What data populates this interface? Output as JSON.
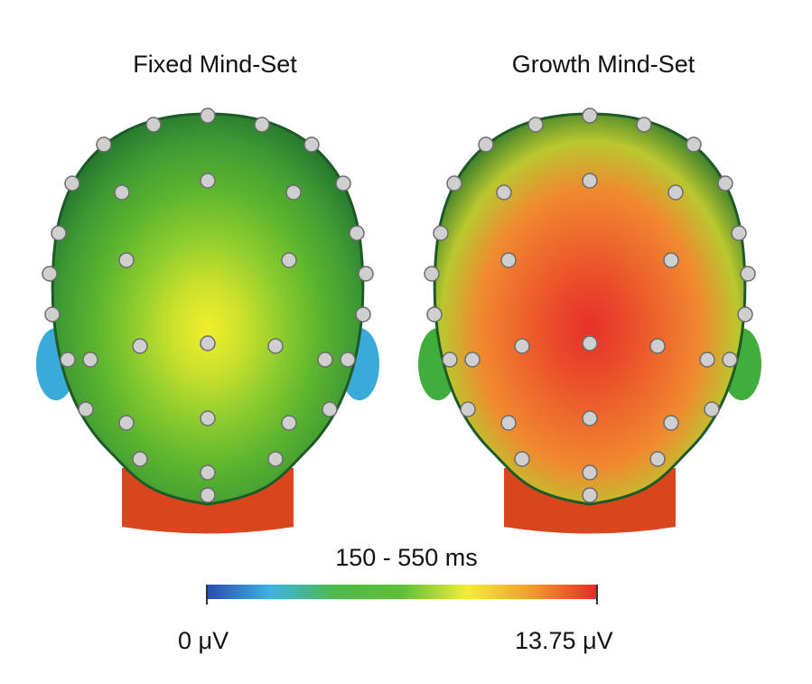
{
  "panels": [
    {
      "title": "Fixed Mind-Set",
      "gradient": [
        "#f2ef2c",
        "#c9e02c",
        "#8dcc2e",
        "#5cb52e",
        "#3f9a34",
        "#1f6e2c"
      ],
      "ear_color": "#3aaad8"
    },
    {
      "title": "Growth Mind-Set",
      "gradient": [
        "#e8302a",
        "#ea4a2a",
        "#ee6a2c",
        "#f08a30",
        "#b9c82e",
        "#1f6e2c"
      ],
      "ear_color": "#3fae3b"
    }
  ],
  "time_window": "150 - 550 ms",
  "colorbar": {
    "min_label": "0 μV",
    "max_label": "13.75 μV",
    "stops": [
      "#2a4bb0",
      "#3db4e0",
      "#4fb84a",
      "#5dbf3a",
      "#f2ee33",
      "#f29a2d",
      "#e62828"
    ]
  },
  "neck_color": "#d9461d"
}
